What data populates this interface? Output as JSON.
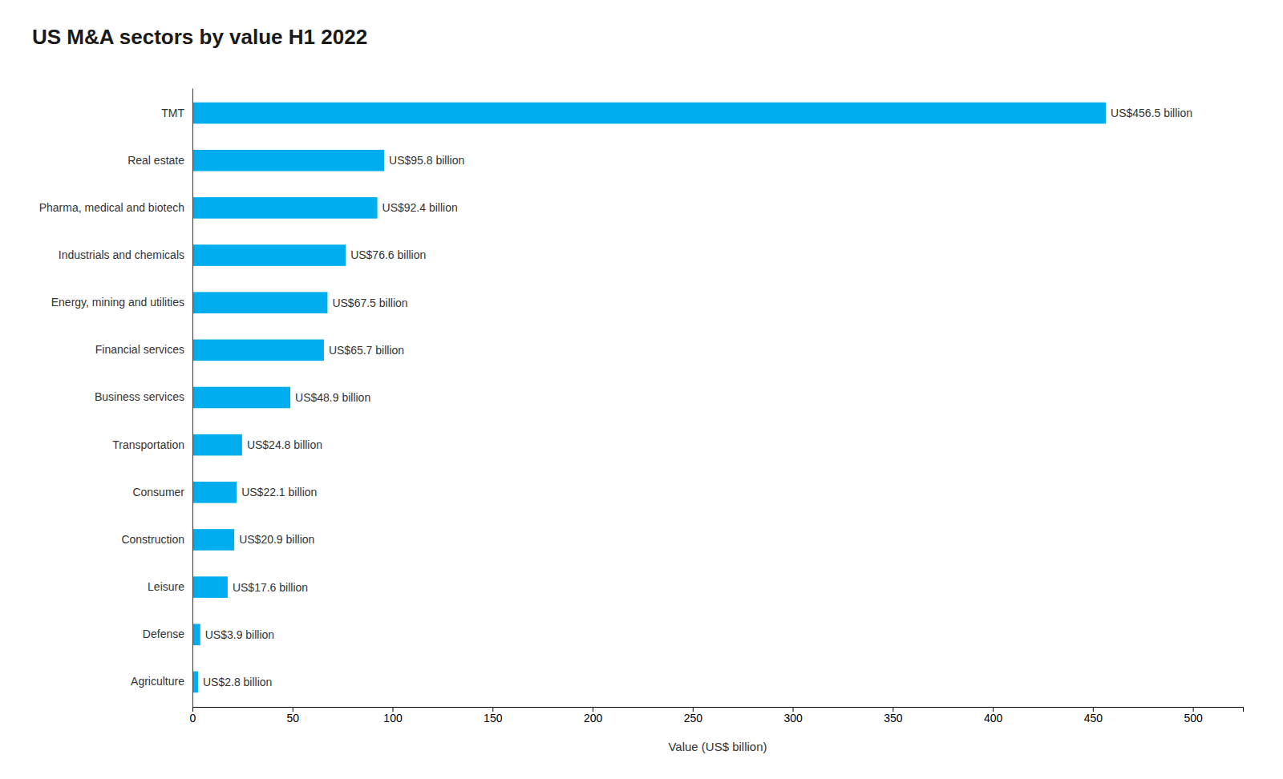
{
  "chart_data": {
    "type": "bar",
    "orientation": "horizontal",
    "title": "US M&A sectors by value H1 2022",
    "x_label": "Value (US$ billion)",
    "categories": [
      "Agriculture",
      "Defense",
      "Leisure",
      "Construction",
      "Consumer",
      "Transportation",
      "Business services",
      "Financial services",
      "Energy, mining and utilities",
      "Industrials and chemicals",
      "Pharma, medical and biotech",
      "Real estate",
      "TMT"
    ],
    "values": [
      2.8,
      3.9,
      17.6,
      20.9,
      22.1,
      24.8,
      48.9,
      65.7,
      67.5,
      76.6,
      92.4,
      95.8,
      456.5
    ],
    "value_labels": [
      "US$2.8 billion",
      "US$3.9 billion",
      "US$17.6 billion",
      "US$20.9 billion",
      "US$22.1 billion",
      "US$24.8 billion",
      "US$48.9 billion",
      "US$65.7 billion",
      "US$67.5 billion",
      "US$76.6 billion",
      "US$92.4 billion",
      "US$95.8 billion",
      "US$456.5 billion"
    ],
    "color": "#00AEEF",
    "xlim": [
      0,
      525
    ],
    "xticks": [
      0,
      50,
      100,
      150,
      200,
      250,
      300,
      350,
      400,
      450,
      500
    ],
    "grid": false
  }
}
